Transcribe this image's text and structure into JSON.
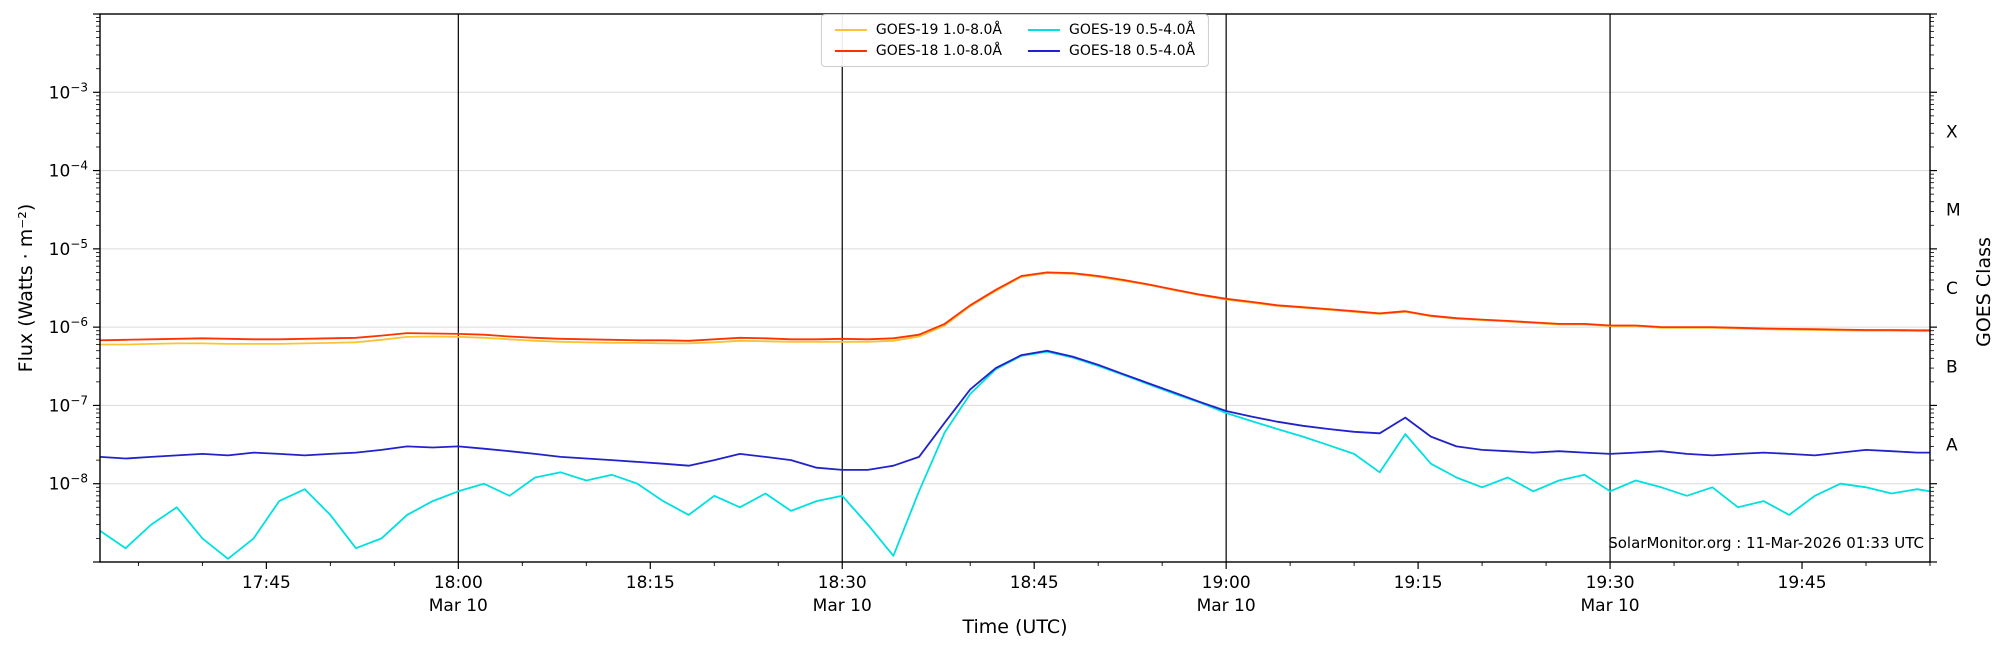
{
  "chart_data": {
    "type": "line",
    "title": "",
    "xlabel": "Time (UTC)",
    "ylabel": "Flux (Watts · m⁻²)",
    "ylabel_right": "GOES Class",
    "watermark": "SolarMonitor.org : 11-Mar-2026 01:33 UTC",
    "x_unit": "minutes since 00:00 UTC, Mar 10",
    "x_range": [
      1052,
      1195
    ],
    "y_log_range": [
      -9,
      -2
    ],
    "y_scale": "log",
    "grid": "horizontal-decades",
    "legend_position": "upper-center",
    "colors": {
      "grid": "#dbdbdb",
      "vline": "#000000",
      "frame": "#000000",
      "text": "#000000",
      "background": "#ffffff"
    },
    "y_ticks": [
      {
        "exp": -3,
        "base": "10",
        "sup": "−3"
      },
      {
        "exp": -4,
        "base": "10",
        "sup": "−4"
      },
      {
        "exp": -5,
        "base": "10",
        "sup": "−5"
      },
      {
        "exp": -6,
        "base": "10",
        "sup": "−6"
      },
      {
        "exp": -7,
        "base": "10",
        "sup": "−7"
      },
      {
        "exp": -8,
        "base": "10",
        "sup": "−8"
      }
    ],
    "x_ticks": [
      {
        "t": 1065,
        "label": "17:45",
        "date": ""
      },
      {
        "t": 1080,
        "label": "18:00",
        "date": "Mar 10"
      },
      {
        "t": 1095,
        "label": "18:15",
        "date": ""
      },
      {
        "t": 1110,
        "label": "18:30",
        "date": "Mar 10"
      },
      {
        "t": 1125,
        "label": "18:45",
        "date": ""
      },
      {
        "t": 1140,
        "label": "19:00",
        "date": "Mar 10"
      },
      {
        "t": 1155,
        "label": "19:15",
        "date": ""
      },
      {
        "t": 1170,
        "label": "19:30",
        "date": "Mar 10"
      },
      {
        "t": 1185,
        "label": "19:45",
        "date": ""
      }
    ],
    "vlines": [
      1080,
      1110,
      1140,
      1170
    ],
    "goes_classes": [
      {
        "label": "X",
        "log_center": -3.5
      },
      {
        "label": "M",
        "log_center": -4.5
      },
      {
        "label": "C",
        "log_center": -5.5
      },
      {
        "label": "B",
        "log_center": -6.5
      },
      {
        "label": "A",
        "log_center": -7.5
      }
    ],
    "x": [
      1052,
      1054,
      1056,
      1058,
      1060,
      1062,
      1064,
      1066,
      1068,
      1070,
      1072,
      1074,
      1076,
      1078,
      1080,
      1082,
      1084,
      1086,
      1088,
      1090,
      1092,
      1094,
      1096,
      1098,
      1100,
      1102,
      1104,
      1106,
      1108,
      1110,
      1112,
      1114,
      1116,
      1118,
      1120,
      1122,
      1124,
      1126,
      1128,
      1130,
      1132,
      1134,
      1136,
      1138,
      1140,
      1142,
      1144,
      1146,
      1148,
      1150,
      1152,
      1154,
      1156,
      1158,
      1160,
      1162,
      1164,
      1166,
      1168,
      1170,
      1172,
      1174,
      1176,
      1178,
      1180,
      1182,
      1184,
      1186,
      1188,
      1190,
      1192,
      1194,
      1195
    ],
    "series": [
      {
        "id": "goes19-long",
        "name": "GOES-19 1.0-8.0Å",
        "color": "#ffc233",
        "values": [
          6e-07,
          6e-07,
          6.1e-07,
          6.2e-07,
          6.2e-07,
          6.1e-07,
          6.1e-07,
          6.1e-07,
          6.2e-07,
          6.3e-07,
          6.4e-07,
          6.9e-07,
          7.5e-07,
          7.6e-07,
          7.5e-07,
          7.3e-07,
          7e-07,
          6.7e-07,
          6.5e-07,
          6.4e-07,
          6.3e-07,
          6.3e-07,
          6.2e-07,
          6.2e-07,
          6.4e-07,
          6.7e-07,
          6.6e-07,
          6.5e-07,
          6.5e-07,
          6.5e-07,
          6.5e-07,
          6.7e-07,
          7.6e-07,
          1.05e-06,
          1.85e-06,
          2.9e-06,
          4.4e-06,
          4.9e-06,
          4.8e-06,
          4.4e-06,
          3.9e-06,
          3.45e-06,
          2.95e-06,
          2.55e-06,
          2.25e-06,
          2.05e-06,
          1.87e-06,
          1.77e-06,
          1.67e-06,
          1.57e-06,
          1.47e-06,
          1.57e-06,
          1.38e-06,
          1.28e-06,
          1.23e-06,
          1.18e-06,
          1.13e-06,
          1.08e-06,
          1.08e-06,
          1.03e-06,
          1.03e-06,
          9.8e-07,
          9.8e-07,
          9.8e-07,
          9.6e-07,
          9.4e-07,
          9.3e-07,
          9.2e-07,
          9.1e-07,
          9e-07,
          9e-07,
          8.9e-07,
          8.9e-07
        ]
      },
      {
        "id": "goes18-long",
        "name": "GOES-18 1.0-8.0Å",
        "color": "#ff3300",
        "values": [
          6.8e-07,
          6.9e-07,
          7e-07,
          7.1e-07,
          7.2e-07,
          7.1e-07,
          7e-07,
          7e-07,
          7.1e-07,
          7.2e-07,
          7.3e-07,
          7.8e-07,
          8.4e-07,
          8.3e-07,
          8.2e-07,
          8e-07,
          7.6e-07,
          7.3e-07,
          7.1e-07,
          7e-07,
          6.9e-07,
          6.8e-07,
          6.8e-07,
          6.7e-07,
          7e-07,
          7.3e-07,
          7.2e-07,
          7e-07,
          7e-07,
          7.1e-07,
          7e-07,
          7.2e-07,
          8e-07,
          1.1e-06,
          1.9e-06,
          3e-06,
          4.5e-06,
          5e-06,
          4.9e-06,
          4.5e-06,
          4e-06,
          3.5e-06,
          3e-06,
          2.6e-06,
          2.3e-06,
          2.1e-06,
          1.9e-06,
          1.8e-06,
          1.7e-06,
          1.6e-06,
          1.5e-06,
          1.6e-06,
          1.4e-06,
          1.3e-06,
          1.25e-06,
          1.2e-06,
          1.15e-06,
          1.1e-06,
          1.1e-06,
          1.05e-06,
          1.05e-06,
          1e-06,
          1e-06,
          1e-06,
          9.8e-07,
          9.6e-07,
          9.5e-07,
          9.4e-07,
          9.3e-07,
          9.2e-07,
          9.2e-07,
          9.1e-07,
          9.1e-07
        ]
      },
      {
        "id": "goes19-short",
        "name": "GOES-19 0.5-4.0Å",
        "color": "#00e0e0",
        "values": [
          2.5e-09,
          1.5e-09,
          3e-09,
          5e-09,
          2e-09,
          1.1e-09,
          2e-09,
          6e-09,
          8.5e-09,
          4e-09,
          1.5e-09,
          2e-09,
          4e-09,
          6e-09,
          8e-09,
          1e-08,
          7e-09,
          1.2e-08,
          1.4e-08,
          1.1e-08,
          1.3e-08,
          1e-08,
          6e-09,
          4e-09,
          7e-09,
          5e-09,
          7.5e-09,
          4.5e-09,
          6e-09,
          7e-09,
          3e-09,
          1.2e-09,
          8e-09,
          4.5e-08,
          1.4e-07,
          2.9e-07,
          4.3e-07,
          4.85e-07,
          4.1e-07,
          3.2e-07,
          2.45e-07,
          1.85e-07,
          1.4e-07,
          1.08e-07,
          8e-08,
          6.3e-08,
          5e-08,
          4e-08,
          3.1e-08,
          2.4e-08,
          1.4e-08,
          4.3e-08,
          1.8e-08,
          1.2e-08,
          9e-09,
          1.2e-08,
          8e-09,
          1.1e-08,
          1.3e-08,
          8e-09,
          1.1e-08,
          9e-09,
          7e-09,
          9e-09,
          5e-09,
          6e-09,
          4e-09,
          7e-09,
          1e-08,
          9e-09,
          7.5e-09,
          8.5e-09,
          8e-09
        ]
      },
      {
        "id": "goes18-short",
        "name": "GOES-18 0.5-4.0Å",
        "color": "#2222cc",
        "values": [
          2.2e-08,
          2.1e-08,
          2.2e-08,
          2.3e-08,
          2.4e-08,
          2.3e-08,
          2.5e-08,
          2.4e-08,
          2.3e-08,
          2.4e-08,
          2.5e-08,
          2.7e-08,
          3e-08,
          2.9e-08,
          3e-08,
          2.8e-08,
          2.6e-08,
          2.4e-08,
          2.2e-08,
          2.1e-08,
          2e-08,
          1.9e-08,
          1.8e-08,
          1.7e-08,
          2e-08,
          2.4e-08,
          2.2e-08,
          2e-08,
          1.6e-08,
          1.5e-08,
          1.5e-08,
          1.7e-08,
          2.2e-08,
          6e-08,
          1.6e-07,
          3e-07,
          4.4e-07,
          5e-07,
          4.2e-07,
          3.3e-07,
          2.5e-07,
          1.9e-07,
          1.45e-07,
          1.1e-07,
          8.5e-08,
          7.2e-08,
          6.2e-08,
          5.5e-08,
          5e-08,
          4.6e-08,
          4.4e-08,
          7e-08,
          4e-08,
          3e-08,
          2.7e-08,
          2.6e-08,
          2.5e-08,
          2.6e-08,
          2.5e-08,
          2.4e-08,
          2.5e-08,
          2.6e-08,
          2.4e-08,
          2.3e-08,
          2.4e-08,
          2.5e-08,
          2.4e-08,
          2.3e-08,
          2.5e-08,
          2.7e-08,
          2.6e-08,
          2.5e-08,
          2.5e-08
        ]
      }
    ]
  }
}
